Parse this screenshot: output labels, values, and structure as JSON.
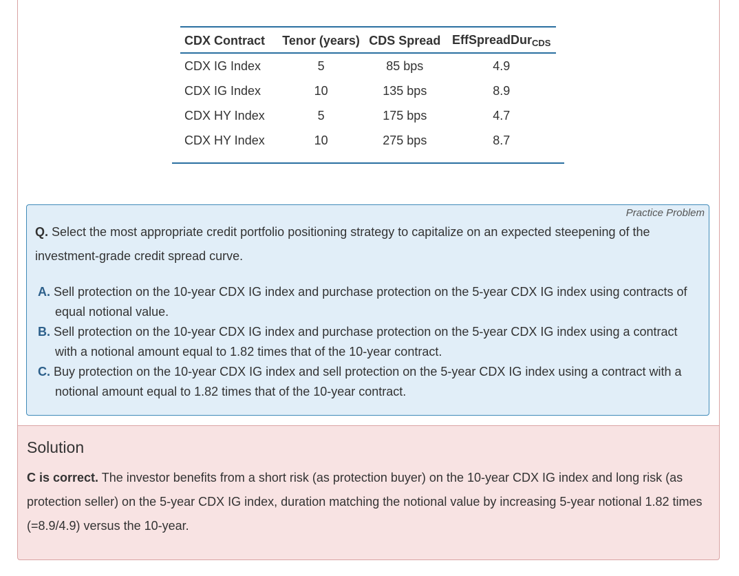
{
  "table": {
    "headers": {
      "contract": "CDX Contract",
      "tenor": "Tenor (years)",
      "spread": "CDS Spread",
      "dur_main": "EffSpreadDur",
      "dur_sub": "CDS"
    },
    "rows": [
      {
        "contract": "CDX IG Index",
        "tenor": "5",
        "spread": "85 bps",
        "dur": "4.9"
      },
      {
        "contract": "CDX IG Index",
        "tenor": "10",
        "spread": "135 bps",
        "dur": "8.9"
      },
      {
        "contract": "CDX HY Index",
        "tenor": "5",
        "spread": "175 bps",
        "dur": "4.7"
      },
      {
        "contract": "CDX HY Index",
        "tenor": "10",
        "spread": "275 bps",
        "dur": "8.7"
      }
    ]
  },
  "problem": {
    "tag": "Practice Problem",
    "q_label": "Q.",
    "question": " Select the most appropriate credit portfolio positioning strategy to capitalize on an expected steepening of the investment-grade credit spread curve.",
    "options": [
      {
        "letter": "A.",
        "text": " Sell protection on the 10-year CDX IG index and purchase protection on the 5-year CDX IG index using contracts of equal notional value."
      },
      {
        "letter": "B.",
        "text": " Sell protection on the 10-year CDX IG index and purchase protection on the 5-year CDX IG index using a contract with a notional amount equal to 1.82 times that of the 10-year contract."
      },
      {
        "letter": "C.",
        "text": " Buy protection on the 10-year CDX IG index and sell protection on the 5-year CDX IG index using a contract with a notional amount equal to 1.82 times that of the 10-year contract."
      }
    ]
  },
  "solution": {
    "title": "Solution",
    "correct": "C is correct.",
    "text": " The investor benefits from a short risk (as protection buyer) on the 10-year CDX IG index and long risk (as protection seller) on the 5-year CDX IG index, duration matching the notional value by increasing 5-year notional 1.82 times (=8.9/4.9) versus the 10-year."
  },
  "colors": {
    "table_rule": "#2a6fa0",
    "problem_bg": "#e1eef8",
    "problem_border": "#3f8ab8",
    "option_letter": "#2c5f8a",
    "solution_bg": "#f8e3e3",
    "solution_border": "#d9a3a3"
  }
}
